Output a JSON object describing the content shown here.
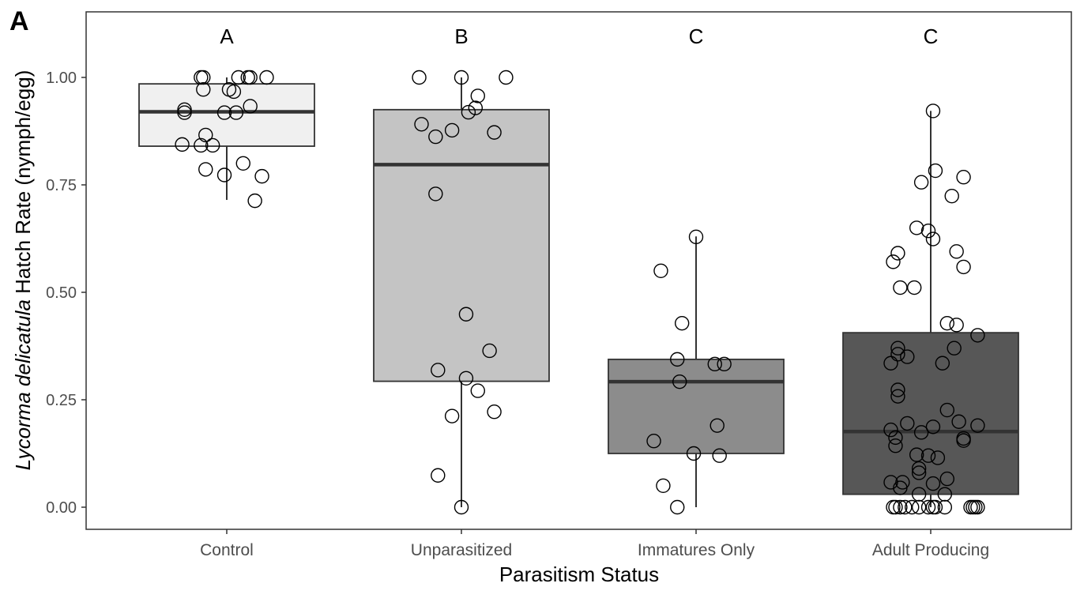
{
  "panel_label": "A",
  "chart_data": {
    "type": "box",
    "xlabel": "Parasitism Status",
    "ylabel_italic": "Lycorma delicatula",
    "ylabel_rest": " Hatch Rate (nymph/egg)",
    "ylim": [
      -0.05,
      1.15
    ],
    "yticks": [
      0.0,
      0.25,
      0.5,
      0.75,
      1.0
    ],
    "ytick_labels": [
      "0.00",
      "0.25",
      "0.50",
      "0.75",
      "1.00"
    ],
    "categories": [
      "Control",
      "Unparasitized",
      "Immatures Only",
      "Adult Producing"
    ],
    "letters": [
      "A",
      "B",
      "C",
      "C"
    ],
    "fills": [
      "#f0f0f0",
      "#c4c4c4",
      "#8c8c8c",
      "#575757"
    ],
    "boxes": [
      {
        "q1": 0.84,
        "median": 0.92,
        "q3": 0.985,
        "whisker_low": 0.715,
        "whisker_high": 1.0
      },
      {
        "q1": 0.293,
        "median": 0.797,
        "q3": 0.925,
        "whisker_low": 0.0,
        "whisker_high": 1.0
      },
      {
        "q1": 0.125,
        "median": 0.292,
        "q3": 0.344,
        "whisker_low": 0.0,
        "whisker_high": 0.63
      },
      {
        "q1": 0.03,
        "median": 0.176,
        "q3": 0.406,
        "whisker_low": 0.0,
        "whisker_high": 0.922
      }
    ],
    "points": [
      [
        [
          -0.11,
          1.0
        ],
        [
          -0.1,
          1.0
        ],
        [
          0.05,
          1.0
        ],
        [
          0.09,
          1.0
        ],
        [
          0.1,
          1.0
        ],
        [
          0.17,
          1.0
        ],
        [
          -0.1,
          0.972
        ],
        [
          0.01,
          0.972
        ],
        [
          0.03,
          0.967
        ],
        [
          0.1,
          0.933
        ],
        [
          -0.18,
          0.925
        ],
        [
          -0.18,
          0.918
        ],
        [
          -0.01,
          0.918
        ],
        [
          0.04,
          0.918
        ],
        [
          -0.09,
          0.866
        ],
        [
          -0.19,
          0.844
        ],
        [
          -0.11,
          0.842
        ],
        [
          -0.06,
          0.842
        ],
        [
          0.07,
          0.8
        ],
        [
          -0.09,
          0.786
        ],
        [
          -0.01,
          0.773
        ],
        [
          0.15,
          0.77
        ],
        [
          0.12,
          0.713
        ]
      ],
      [
        [
          -0.18,
          1.0
        ],
        [
          0.0,
          1.0
        ],
        [
          0.19,
          1.0
        ],
        [
          0.07,
          0.957
        ],
        [
          0.06,
          0.929
        ],
        [
          0.03,
          0.919
        ],
        [
          -0.17,
          0.891
        ],
        [
          -0.04,
          0.877
        ],
        [
          0.14,
          0.872
        ],
        [
          -0.11,
          0.862
        ],
        [
          -0.11,
          0.729
        ],
        [
          0.02,
          0.449
        ],
        [
          0.12,
          0.364
        ],
        [
          -0.1,
          0.319
        ],
        [
          0.02,
          0.3
        ],
        [
          0.07,
          0.271
        ],
        [
          0.14,
          0.222
        ],
        [
          -0.04,
          0.212
        ],
        [
          -0.1,
          0.074
        ],
        [
          0.0,
          0.0
        ]
      ],
      [
        [
          0.0,
          0.629
        ],
        [
          -0.15,
          0.55
        ],
        [
          -0.06,
          0.428
        ],
        [
          -0.08,
          0.344
        ],
        [
          0.08,
          0.333
        ],
        [
          0.12,
          0.333
        ],
        [
          -0.07,
          0.292
        ],
        [
          0.09,
          0.19
        ],
        [
          -0.18,
          0.154
        ],
        [
          -0.01,
          0.125
        ],
        [
          0.1,
          0.12
        ],
        [
          -0.14,
          0.05
        ],
        [
          -0.08,
          0.0
        ]
      ],
      [
        [
          0.01,
          0.922
        ],
        [
          0.02,
          0.783
        ],
        [
          0.14,
          0.768
        ],
        [
          -0.04,
          0.756
        ],
        [
          0.09,
          0.724
        ],
        [
          -0.06,
          0.65
        ],
        [
          -0.01,
          0.643
        ],
        [
          0.01,
          0.624
        ],
        [
          -0.14,
          0.591
        ],
        [
          0.11,
          0.595
        ],
        [
          -0.16,
          0.571
        ],
        [
          0.14,
          0.559
        ],
        [
          -0.13,
          0.511
        ],
        [
          -0.07,
          0.511
        ],
        [
          0.11,
          0.424
        ],
        [
          0.07,
          0.428
        ],
        [
          0.2,
          0.4
        ],
        [
          -0.14,
          0.356
        ],
        [
          -0.14,
          0.37
        ],
        [
          0.1,
          0.37
        ],
        [
          -0.1,
          0.35
        ],
        [
          -0.17,
          0.335
        ],
        [
          0.05,
          0.335
        ],
        [
          -0.14,
          0.273
        ],
        [
          -0.14,
          0.258
        ],
        [
          0.07,
          0.226
        ],
        [
          -0.1,
          0.195
        ],
        [
          0.01,
          0.187
        ],
        [
          0.12,
          0.199
        ],
        [
          0.2,
          0.19
        ],
        [
          -0.17,
          0.18
        ],
        [
          -0.15,
          0.162
        ],
        [
          -0.04,
          0.174
        ],
        [
          0.14,
          0.16
        ],
        [
          0.14,
          0.155
        ],
        [
          -0.15,
          0.143
        ],
        [
          -0.06,
          0.122
        ],
        [
          0.03,
          0.115
        ],
        [
          -0.01,
          0.12
        ],
        [
          -0.05,
          0.09
        ],
        [
          -0.05,
          0.08
        ],
        [
          0.07,
          0.066
        ],
        [
          -0.12,
          0.058
        ],
        [
          -0.17,
          0.058
        ],
        [
          0.01,
          0.055
        ],
        [
          -0.13,
          0.045
        ],
        [
          -0.05,
          0.03
        ],
        [
          0.06,
          0.03
        ],
        [
          -0.16,
          0.0
        ],
        [
          -0.15,
          0.0
        ],
        [
          -0.13,
          0.0
        ],
        [
          -0.11,
          0.0
        ],
        [
          -0.08,
          0.0
        ],
        [
          -0.05,
          0.0
        ],
        [
          -0.01,
          0.0
        ],
        [
          0.01,
          0.0
        ],
        [
          0.02,
          0.0
        ],
        [
          0.06,
          0.0
        ],
        [
          0.17,
          0.0
        ],
        [
          0.18,
          0.0
        ],
        [
          0.19,
          0.0
        ],
        [
          0.2,
          0.0
        ]
      ]
    ]
  }
}
